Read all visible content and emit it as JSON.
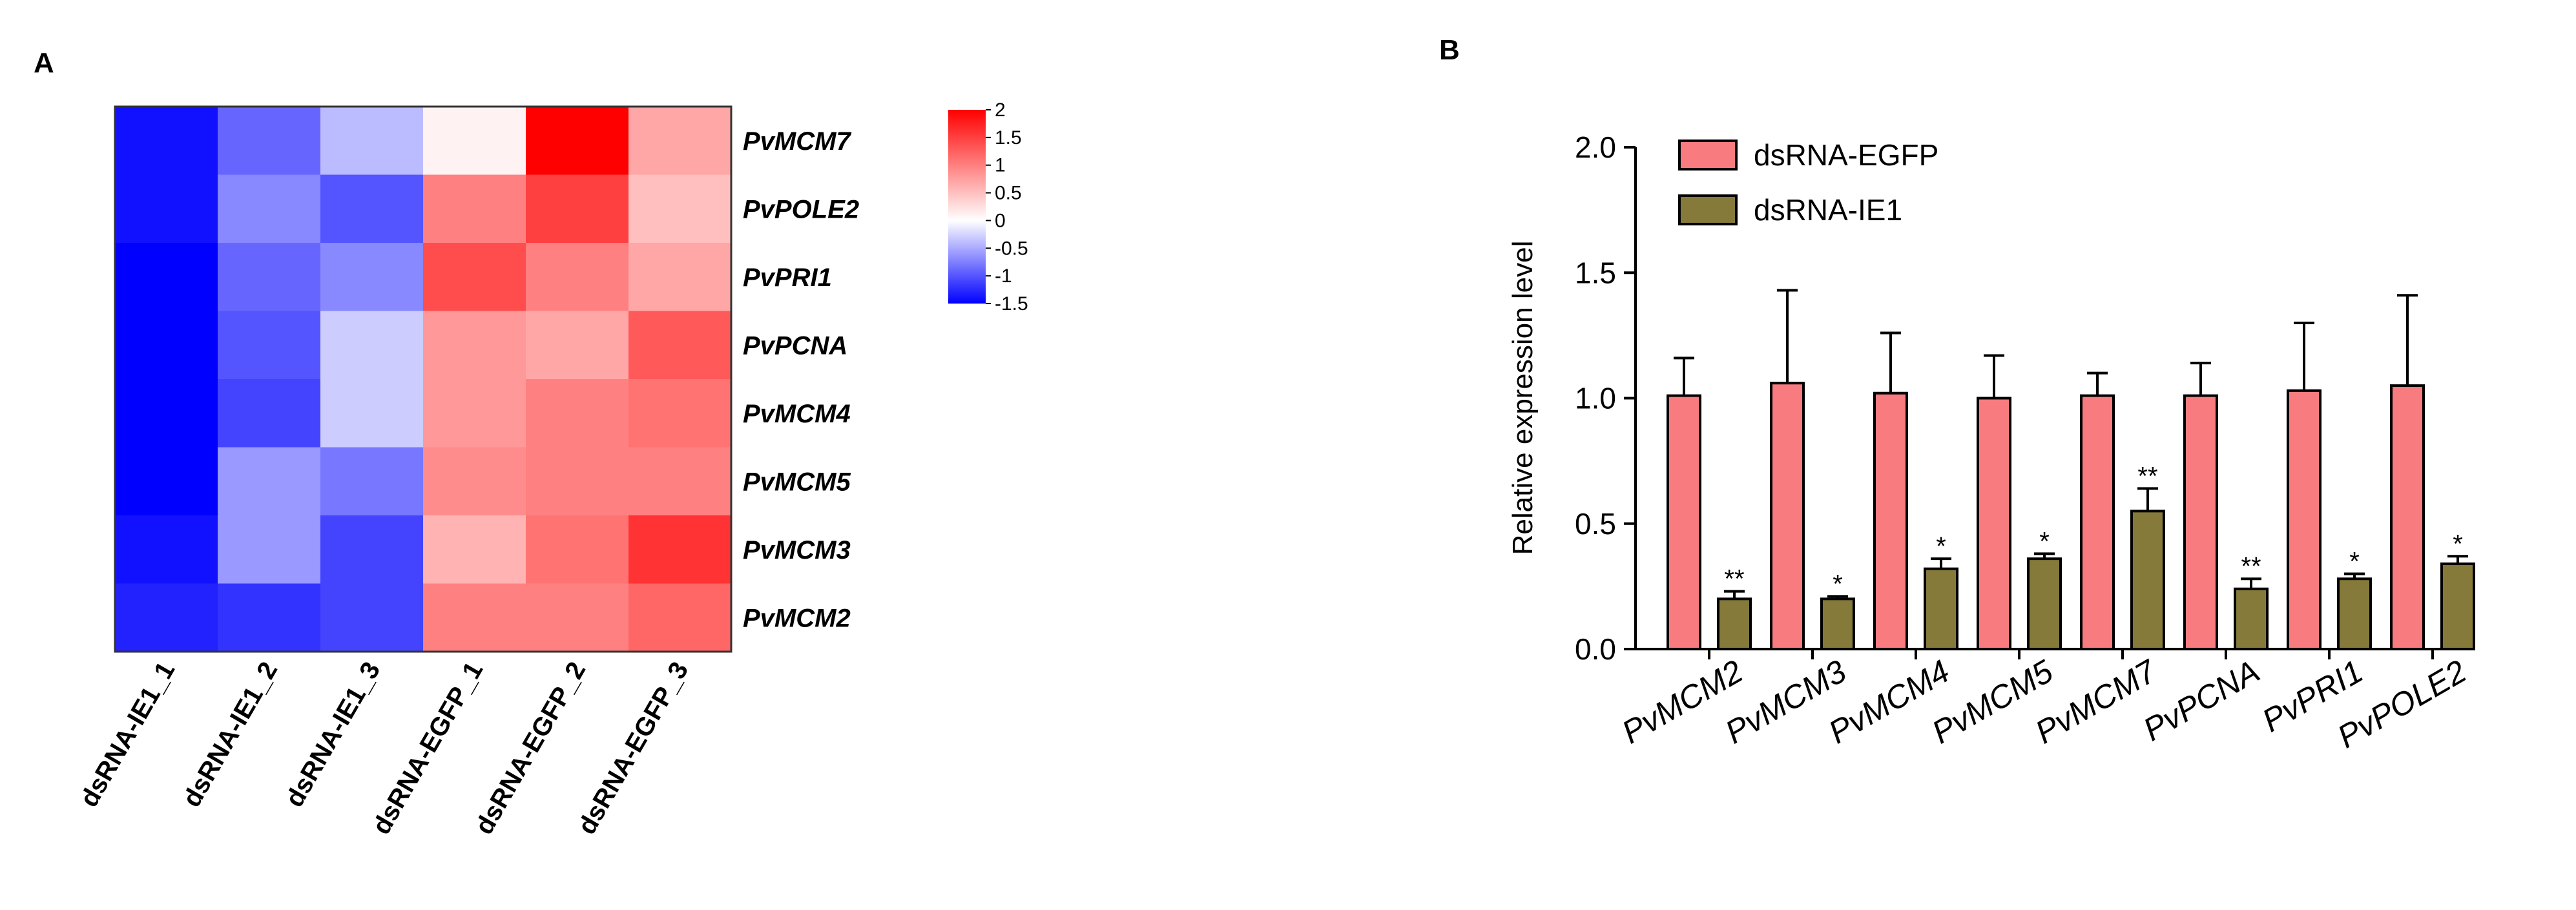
{
  "chart_data": [
    {
      "type": "heatmap",
      "panel_label": "A",
      "rows": [
        "PvMCM7",
        "PvPOLE2",
        "PvPRI1",
        "PvPCNA",
        "PvMCM4",
        "PvMCM5",
        "PvMCM3",
        "PvMCM2"
      ],
      "columns": [
        "dsRNA-IE1_1",
        "dsRNA-IE1_2",
        "dsRNA-IE1_3",
        "dsRNA-EGFP_1",
        "dsRNA-EGFP_2",
        "dsRNA-EGFP_3"
      ],
      "values": [
        [
          -1.4,
          -0.9,
          -0.4,
          0.1,
          2.0,
          0.7
        ],
        [
          -1.4,
          -0.7,
          -1.0,
          1.0,
          1.5,
          0.5
        ],
        [
          -1.5,
          -0.9,
          -0.7,
          1.4,
          1.0,
          0.7
        ],
        [
          -1.6,
          -1.0,
          -0.3,
          0.8,
          0.7,
          1.3
        ],
        [
          -1.6,
          -1.1,
          -0.3,
          0.8,
          1.0,
          1.1
        ],
        [
          -1.6,
          -0.6,
          -0.8,
          0.9,
          1.0,
          1.0
        ],
        [
          -1.4,
          -0.6,
          -1.1,
          0.6,
          1.1,
          1.6
        ],
        [
          -1.3,
          -1.2,
          -1.1,
          1.0,
          1.0,
          1.2
        ]
      ],
      "colorbar": {
        "min": -1.5,
        "max": 2,
        "ticks": [
          2,
          1.5,
          1,
          0.5,
          0,
          -0.5,
          -1,
          -1.5
        ],
        "tick_labels": [
          "2",
          "1.5",
          "1",
          "0.5",
          "0",
          "-0.5",
          "-1",
          "-1.5"
        ],
        "colors": {
          "low": "#0000ff",
          "mid": "#ffffff",
          "high": "#ff0000"
        }
      }
    },
    {
      "type": "bar",
      "panel_label": "B",
      "categories": [
        "PvMCM2",
        "PvMCM3",
        "PvMCM4",
        "PvMCM5",
        "PvMCM7",
        "PvPCNA",
        "PvPRI1",
        "PvPOLE2"
      ],
      "series": [
        {
          "name": "dsRNA-EGFP",
          "color": "#f87b80",
          "values": [
            1.01,
            1.06,
            1.02,
            1.0,
            1.01,
            1.01,
            1.03,
            1.05
          ],
          "errors": [
            0.15,
            0.37,
            0.24,
            0.17,
            0.09,
            0.13,
            0.27,
            0.36
          ],
          "significance": [
            "",
            "",
            "",
            "",
            "",
            "",
            "",
            ""
          ]
        },
        {
          "name": "dsRNA-IE1",
          "color": "#857a3a",
          "values": [
            0.2,
            0.2,
            0.32,
            0.36,
            0.55,
            0.24,
            0.28,
            0.34
          ],
          "errors": [
            0.03,
            0.01,
            0.04,
            0.02,
            0.09,
            0.04,
            0.02,
            0.03
          ],
          "significance": [
            "**",
            "*",
            "*",
            "*",
            "**",
            "**",
            "*",
            "*"
          ]
        }
      ],
      "ylabel": "Relative expression level",
      "xlabel": "",
      "ylim": [
        0,
        2.0
      ],
      "yticks": [
        0,
        0.5,
        1,
        1.5,
        2
      ],
      "ytick_labels": [
        "0.0",
        "0.5",
        "1.0",
        "1.5",
        "2.0"
      ],
      "legend_position": "top-left"
    }
  ]
}
